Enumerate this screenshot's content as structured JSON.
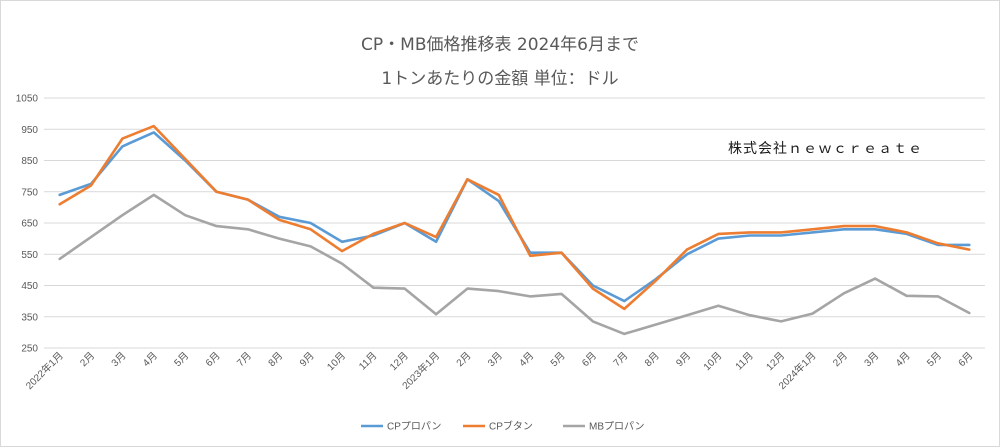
{
  "chart_data": {
    "type": "line",
    "title": "CP・MB価格推移表 2024年6月まで",
    "subtitle": "1トンあたりの金額 単位：ドル",
    "annotation": "株式会社ｎｅｗｃｒｅａｔｅ",
    "categories": [
      "2022年1月",
      "2月",
      "3月",
      "4月",
      "5月",
      "6月",
      "7月",
      "8月",
      "9月",
      "10月",
      "11月",
      "12月",
      "2023年1月",
      "2月",
      "3月",
      "4月",
      "5月",
      "6月",
      "7月",
      "8月",
      "9月",
      "10月",
      "11月",
      "12月",
      "2024年1月",
      "2月",
      "3月",
      "4月",
      "5月",
      "6月"
    ],
    "ylim": [
      250,
      1050
    ],
    "yticks": [
      250,
      350,
      450,
      550,
      650,
      750,
      850,
      950,
      1050
    ],
    "grid": true,
    "legend_position": "bottom",
    "series": [
      {
        "name": "CPプロパン",
        "color": "#5b9bd5",
        "values": [
          740,
          775,
          895,
          940,
          850,
          750,
          725,
          670,
          650,
          590,
          610,
          650,
          590,
          790,
          720,
          555,
          555,
          450,
          400,
          470,
          550,
          600,
          610,
          610,
          620,
          630,
          630,
          615,
          580,
          580
        ]
      },
      {
        "name": "CPブタン",
        "color": "#ed7d31",
        "values": [
          710,
          770,
          920,
          960,
          855,
          750,
          725,
          660,
          630,
          560,
          615,
          650,
          605,
          790,
          740,
          545,
          555,
          440,
          375,
          465,
          565,
          615,
          620,
          620,
          630,
          640,
          640,
          620,
          585,
          565
        ]
      },
      {
        "name": "MBプロパン",
        "color": "#a5a5a5",
        "values": [
          535,
          605,
          675,
          740,
          675,
          640,
          630,
          600,
          575,
          520,
          443,
          440,
          358,
          440,
          432,
          415,
          423,
          335,
          295,
          325,
          355,
          385,
          355,
          335,
          360,
          425,
          472,
          417,
          415,
          362
        ]
      }
    ]
  }
}
